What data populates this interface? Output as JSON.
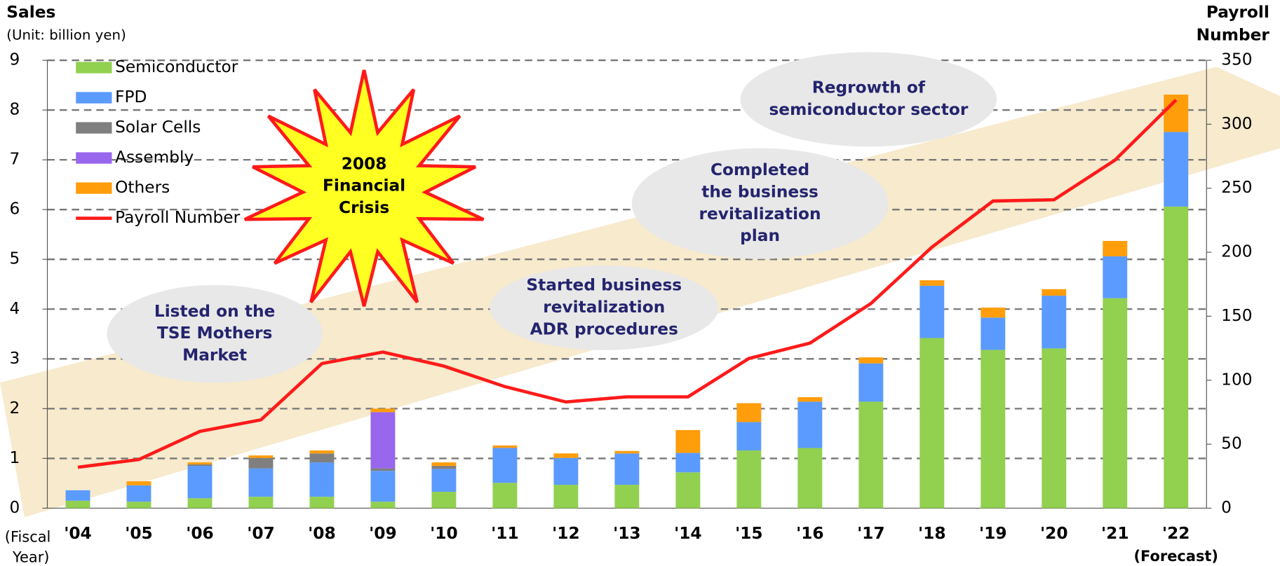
{
  "chart_data": {
    "type": "bar",
    "title": "Sales",
    "subtitle": "(Unit: billion yen)",
    "y2_title_lines": [
      "Payroll",
      "Number"
    ],
    "x_label_lines": [
      "(Fiscal",
      "Year)"
    ],
    "x_note": "(Forecast)",
    "categories": [
      "'04",
      "'05",
      "'06",
      "'07",
      "'08",
      "'09",
      "'10",
      "'11",
      "'12",
      "'13",
      "'14",
      "'15",
      "'16",
      "'17",
      "'18",
      "'19",
      "'20",
      "'21",
      "'22"
    ],
    "stacked": true,
    "grid": true,
    "legend": "top-left",
    "ylim": [
      0,
      9
    ],
    "yticks": [
      0,
      1,
      2,
      3,
      4,
      5,
      6,
      7,
      8,
      9
    ],
    "y2lim": [
      0,
      350
    ],
    "y2ticks": [
      0,
      50,
      100,
      150,
      200,
      250,
      300,
      350
    ],
    "series": [
      {
        "name": "Semiconductor",
        "color": "#92d050",
        "values": [
          0.15,
          0.13,
          0.2,
          0.23,
          0.23,
          0.13,
          0.33,
          0.51,
          0.47,
          0.47,
          0.72,
          1.16,
          1.21,
          2.14,
          3.42,
          3.18,
          3.21,
          4.22,
          6.06
        ]
      },
      {
        "name": "FPD",
        "color": "#5b9bff",
        "values": [
          0.21,
          0.33,
          0.65,
          0.57,
          0.69,
          0.62,
          0.46,
          0.7,
          0.54,
          0.63,
          0.39,
          0.57,
          0.93,
          0.77,
          1.05,
          0.65,
          1.06,
          0.84,
          1.5
        ]
      },
      {
        "name": "Solar Cells",
        "color": "#7f7f7f",
        "values": [
          0,
          0,
          0.03,
          0.21,
          0.18,
          0.05,
          0.06,
          0,
          0,
          0,
          0,
          0,
          0,
          0,
          0,
          0,
          0,
          0,
          0
        ]
      },
      {
        "name": "Assembly",
        "color": "#9966ee",
        "values": [
          0,
          0,
          0,
          0,
          0,
          1.13,
          0,
          0,
          0,
          0,
          0,
          0,
          0,
          0,
          0,
          0,
          0,
          0,
          0
        ]
      },
      {
        "name": "Others",
        "color": "#ff9d0a",
        "values": [
          0,
          0.08,
          0.04,
          0.05,
          0.06,
          0.07,
          0.07,
          0.05,
          0.09,
          0.05,
          0.46,
          0.38,
          0.09,
          0.12,
          0.11,
          0.2,
          0.13,
          0.31,
          0.75
        ]
      },
      {
        "name": "Payroll Number",
        "type": "line",
        "axis": "y2",
        "color": "#ff1a1a",
        "values": [
          32,
          38,
          60,
          69,
          113,
          122,
          111,
          95,
          83,
          87,
          87,
          117,
          129,
          160,
          204,
          240,
          241,
          272,
          319
        ]
      }
    ],
    "crisis_lines": [
      "2008",
      "Financial",
      "Crisis"
    ],
    "annotations": [
      {
        "lines": [
          "Listed on the",
          "TSE Mothers",
          "Market"
        ]
      },
      {
        "lines": [
          "Started business",
          "revitalization",
          "ADR procedures"
        ]
      },
      {
        "lines": [
          "Completed",
          "the business",
          "revitalization",
          "plan"
        ]
      },
      {
        "lines": [
          "Regrowth of",
          "semiconductor sector"
        ]
      }
    ]
  }
}
